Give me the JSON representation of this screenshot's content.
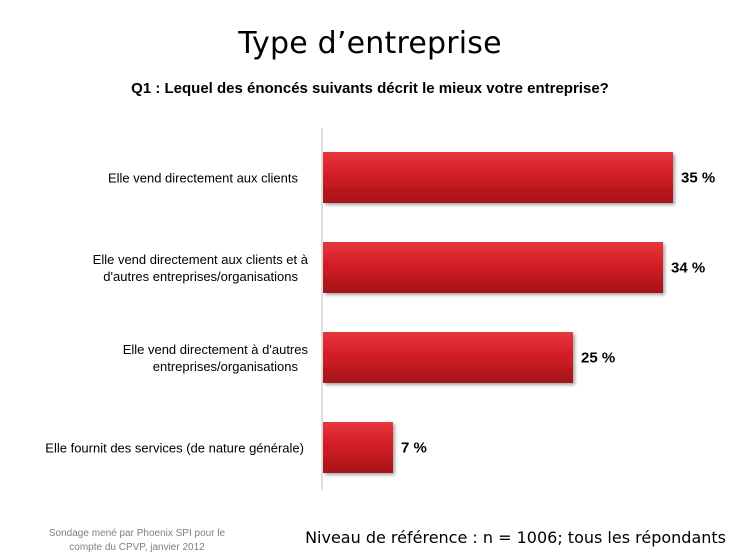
{
  "header": {
    "title": "Type d’entreprise",
    "subtitle": "Q1 : Lequel des énoncés suivants décrit le mieux votre entreprise?"
  },
  "footer": {
    "source_line1": "Sondage mené par Phoenix SPI pour le",
    "source_line2": "compte du CPVP, janvier 2012",
    "base": "Niveau de référence : n = 1006; tous les répondants"
  },
  "colors": {
    "bar": "#d41d24",
    "bar_dark": "#a3151a",
    "bar_light": "#e6383e",
    "axis": "#bfbfbf"
  },
  "chart_data": {
    "type": "bar",
    "orientation": "horizontal",
    "categories": [
      [
        "Elle vend directement aux clients"
      ],
      [
        "Elle vend directement aux clients et à",
        "d'autres entreprises/organisations"
      ],
      [
        "Elle vend directement à d'autres",
        "entreprises/organisations"
      ],
      [
        "Elle fournit des services (de nature générale)"
      ]
    ],
    "values": [
      35,
      34,
      25,
      7
    ],
    "value_labels": [
      "35 %",
      "34 %",
      "25 %",
      "7 %"
    ],
    "xlim": [
      0,
      40
    ],
    "grid": false,
    "legend": "none"
  }
}
